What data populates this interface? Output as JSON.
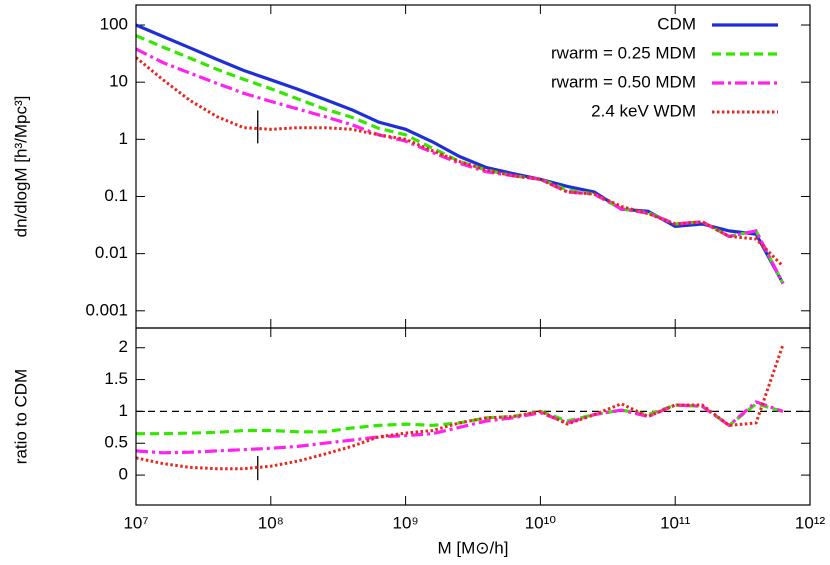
{
  "chart_data": [
    {
      "type": "line",
      "ylabel": "dn/dlogM [h³/Mpc³]",
      "log_x": true,
      "log_y": true,
      "xlim": [
        10000000.0,
        1000000000000.0
      ],
      "ylim": [
        0.0005,
        224
      ],
      "yticks": [
        100,
        10,
        1,
        0.1,
        0.01,
        0.001
      ],
      "legend": "upper right",
      "x": [
        10000000.0,
        15850000.0,
        25120000.0,
        39810000.0,
        63100000.0,
        100000000.0,
        158500000.0,
        251200000.0,
        398100000.0,
        631000000.0,
        1000000000.0,
        1585000000.0,
        2512000000.0,
        3981000000.0,
        6310000000.0,
        10000000000.0,
        15850000000.0,
        25120000000.0,
        39810000000.0,
        63100000000.0,
        100000000000.0,
        158500000000.0,
        251200000000.0,
        398100000000.0,
        631000000000.0
      ],
      "marker_x": 80000000.0,
      "marker_y": [
        0.85,
        3.2
      ],
      "series": [
        {
          "name": "CDM",
          "color": "#1f2fd8",
          "style": "solid",
          "values": [
            100,
            63,
            40,
            25,
            16,
            11,
            7.5,
            5,
            3.3,
            2.0,
            1.5,
            0.9,
            0.5,
            0.32,
            0.25,
            0.2,
            0.15,
            0.12,
            0.06,
            0.055,
            0.03,
            0.033,
            0.025,
            0.022,
            0.003
          ]
        },
        {
          "name": "rwarm = 0.25 MDM",
          "color": "#33e800",
          "style": "dashed",
          "values": [
            65,
            41,
            26.4,
            16.8,
            11.2,
            7.7,
            5.1,
            3.4,
            2.44,
            1.56,
            1.2,
            0.7,
            0.41,
            0.29,
            0.23,
            0.2,
            0.13,
            0.11,
            0.061,
            0.052,
            0.033,
            0.036,
            0.02,
            0.025,
            0.003
          ]
        },
        {
          "name": "rwarm = 0.50 MDM",
          "color": "#ff22ee",
          "style": "dashdot",
          "values": [
            38,
            22,
            14.4,
            9.5,
            6.4,
            4.6,
            3.4,
            2.5,
            1.8,
            1.2,
            0.93,
            0.59,
            0.38,
            0.27,
            0.23,
            0.2,
            0.12,
            0.11,
            0.061,
            0.051,
            0.033,
            0.036,
            0.02,
            0.025,
            0.003
          ]
        },
        {
          "name": "2.4 keV WDM",
          "color": "#e8261c",
          "style": "dotted",
          "values": [
            27,
            11,
            4.8,
            2.5,
            1.6,
            1.5,
            1.6,
            1.6,
            1.5,
            1.2,
            1.0,
            0.63,
            0.41,
            0.29,
            0.23,
            0.2,
            0.12,
            0.11,
            0.067,
            0.05,
            0.033,
            0.036,
            0.02,
            0.018,
            0.006
          ]
        }
      ]
    },
    {
      "type": "line",
      "ylabel": "ratio to CDM",
      "xlabel": "M [M⊙/h]",
      "log_x": true,
      "log_y": false,
      "xlim": [
        10000000.0,
        1000000000000.0
      ],
      "ylim": [
        -0.47,
        2.31
      ],
      "yticks": [
        0,
        0.5,
        1,
        1.5,
        2
      ],
      "refline": 1,
      "xticks": [
        {
          "value": 10000000.0,
          "label": "10⁷"
        },
        {
          "value": 100000000.0,
          "label": "10⁸"
        },
        {
          "value": 1000000000.0,
          "label": "10⁹"
        },
        {
          "value": 10000000000.0,
          "label": "10¹⁰"
        },
        {
          "value": 100000000000.0,
          "label": "10¹¹"
        },
        {
          "value": 1000000000000.0,
          "label": "10¹²"
        }
      ],
      "x": [
        10000000.0,
        15850000.0,
        25120000.0,
        39810000.0,
        63100000.0,
        100000000.0,
        158500000.0,
        251200000.0,
        398100000.0,
        631000000.0,
        1000000000.0,
        1585000000.0,
        2512000000.0,
        3981000000.0,
        6310000000.0,
        10000000000.0,
        15850000000.0,
        25120000000.0,
        39810000000.0,
        63100000000.0,
        100000000000.0,
        158500000000.0,
        251200000000.0,
        398100000000.0,
        631000000000.0
      ],
      "marker_x": 80000000.0,
      "marker_y": [
        -0.08,
        0.3
      ],
      "series": [
        {
          "color": "#33e800",
          "style": "dashed",
          "values": [
            0.65,
            0.65,
            0.66,
            0.67,
            0.7,
            0.7,
            0.68,
            0.68,
            0.74,
            0.78,
            0.8,
            0.78,
            0.82,
            0.9,
            0.92,
            1.0,
            0.85,
            0.95,
            1.02,
            0.95,
            1.1,
            1.08,
            0.78,
            1.12,
            1.0
          ]
        },
        {
          "color": "#ff22ee",
          "style": "dashdot",
          "values": [
            0.38,
            0.35,
            0.36,
            0.38,
            0.4,
            0.42,
            0.45,
            0.5,
            0.55,
            0.6,
            0.62,
            0.65,
            0.75,
            0.85,
            0.9,
            0.98,
            0.82,
            0.95,
            1.02,
            0.92,
            1.1,
            1.08,
            0.78,
            1.15,
            1.0
          ]
        },
        {
          "color": "#e8261c",
          "style": "dotted",
          "values": [
            0.27,
            0.18,
            0.12,
            0.1,
            0.1,
            0.14,
            0.22,
            0.33,
            0.45,
            0.6,
            0.66,
            0.7,
            0.82,
            0.9,
            0.92,
            1.0,
            0.8,
            0.95,
            1.12,
            0.92,
            1.1,
            1.1,
            0.78,
            0.82,
            2.05
          ]
        }
      ]
    }
  ]
}
